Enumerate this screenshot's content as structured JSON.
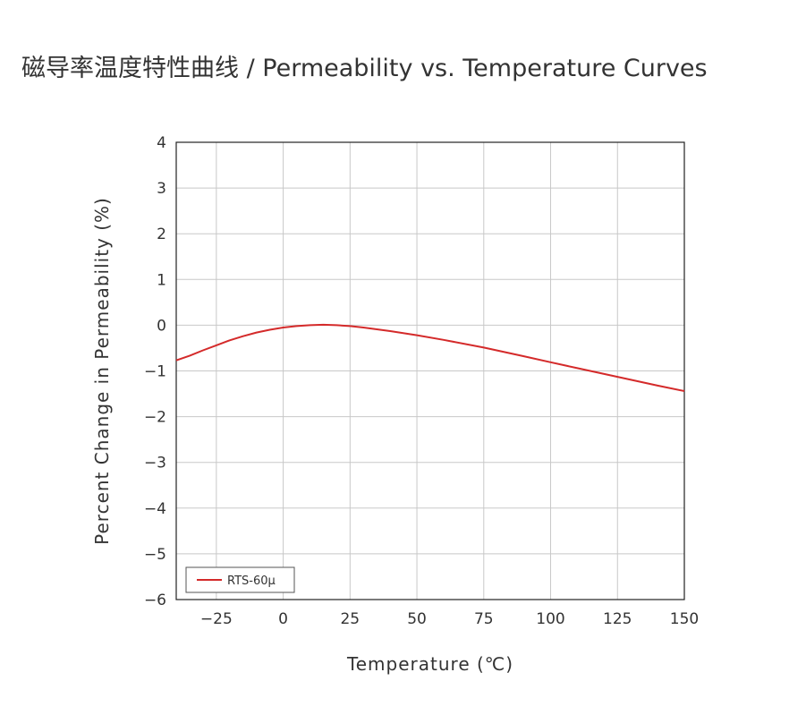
{
  "title": "磁导率温度特性曲线 / Permeability vs. Temperature Curves",
  "chart_data": {
    "type": "line",
    "xlabel": "Temperature (℃)",
    "ylabel": "Percent Change in Permeability (%)",
    "xlim": [
      -40,
      150
    ],
    "ylim": [
      -6,
      4
    ],
    "xticks": [
      -25,
      0,
      25,
      50,
      75,
      100,
      125,
      150
    ],
    "yticks": [
      4,
      3,
      2,
      1,
      0,
      -1,
      -2,
      -3,
      -4,
      -5,
      -6
    ],
    "grid": true,
    "legend_position": "bottom-left",
    "series": [
      {
        "name": "RTS-60μ",
        "color": "#d42a2a",
        "x": [
          -40,
          -35,
          -30,
          -25,
          -20,
          -15,
          -10,
          -5,
          0,
          5,
          10,
          15,
          20,
          25,
          30,
          40,
          50,
          60,
          75,
          90,
          100,
          110,
          125,
          140,
          150
        ],
        "y": [
          -0.77,
          -0.67,
          -0.55,
          -0.44,
          -0.33,
          -0.24,
          -0.16,
          -0.1,
          -0.05,
          -0.02,
          0.0,
          0.01,
          0.0,
          -0.02,
          -0.05,
          -0.13,
          -0.22,
          -0.32,
          -0.49,
          -0.68,
          -0.81,
          -0.94,
          -1.13,
          -1.32,
          -1.44
        ]
      }
    ]
  }
}
